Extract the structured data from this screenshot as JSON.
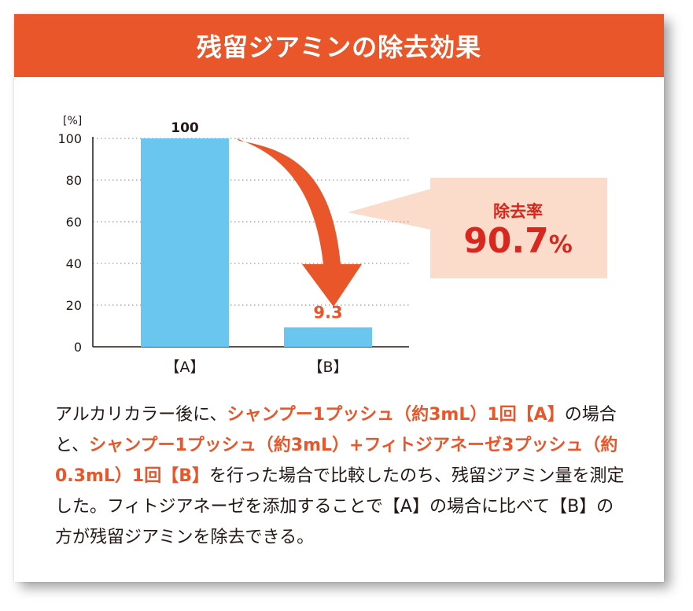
{
  "title": "残留ジアミンの除去効果",
  "chart_data": {
    "type": "bar",
    "categories": [
      "【A】",
      "【B】"
    ],
    "values": [
      100,
      9.3
    ],
    "value_labels": [
      "100",
      "9.3"
    ],
    "ylabel": "[%]",
    "ylim": [
      0,
      100
    ],
    "yticks": [
      0,
      20,
      40,
      60,
      80,
      100
    ],
    "grid": true,
    "bar_color": "#6ac5ef",
    "arrow_color": "#e8562a"
  },
  "callout": {
    "label": "除去率",
    "value": "90.7",
    "unit": "%",
    "bg_color": "#fbdccb",
    "text_color": "#d6281e"
  },
  "description": [
    {
      "text": "アルカリカラー後に、",
      "hl": false
    },
    {
      "text": "シャンプー1プッシュ（約3mL）1回【A】",
      "hl": true
    },
    {
      "text": "の場合と、",
      "hl": false
    },
    {
      "text": "シャンプー1プッシュ（約3mL）+フィトジアネーゼ3プッシュ（約0.3mL）1回【B】",
      "hl": true
    },
    {
      "text": "を行った場合で比較したのち、残留ジアミン量を測定した。フィトジアネーゼを添加することで【A】の場合に比べて【B】の方が残留ジアミンを除去できる。",
      "hl": false
    }
  ]
}
